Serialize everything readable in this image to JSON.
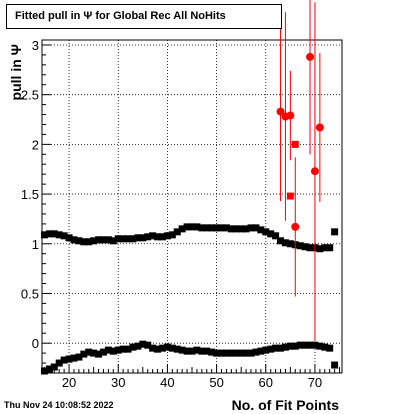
{
  "chart_data": {
    "type": "scatter",
    "title": "Fitted pull in Ψ for Global Rec All NoHits",
    "xlabel": "No. of Fit Points",
    "ylabel": "pull in Ψ",
    "xlim": [
      14.5,
      75.5
    ],
    "ylim": [
      -0.3,
      3.05
    ],
    "grid": true,
    "x_ticks": [
      20,
      30,
      40,
      50,
      60,
      70
    ],
    "y_ticks": [
      0,
      0.5,
      1,
      1.5,
      2,
      2.5,
      3
    ],
    "x_tick_labels": [
      "20",
      "30",
      "40",
      "50",
      "60",
      "70"
    ],
    "y_tick_labels": [
      "0",
      "0.5",
      "1",
      "1.5",
      "2",
      "2.5",
      "3"
    ],
    "timestamp": "Thu Nov 24 10:08:52 2022",
    "series": [
      {
        "color": "#000000",
        "marker": "square",
        "x": [
          15,
          16,
          17,
          18,
          19,
          20,
          21,
          22,
          23,
          24,
          25,
          26,
          27,
          28,
          29,
          30,
          31,
          32,
          33,
          34,
          35,
          36,
          37,
          38,
          39,
          40,
          41,
          42,
          43,
          44,
          45,
          46,
          47,
          48,
          49,
          50,
          51,
          52,
          53,
          54,
          55,
          56,
          57,
          58,
          59,
          60,
          61,
          62,
          63,
          64,
          65,
          66,
          67,
          68,
          69,
          70,
          71,
          72,
          73,
          74
        ],
        "y": [
          1.09,
          1.1,
          1.1,
          1.09,
          1.08,
          1.06,
          1.04,
          1.03,
          1.02,
          1.02,
          1.03,
          1.04,
          1.04,
          1.04,
          1.03,
          1.05,
          1.05,
          1.05,
          1.05,
          1.06,
          1.06,
          1.07,
          1.08,
          1.07,
          1.07,
          1.08,
          1.09,
          1.12,
          1.15,
          1.17,
          1.17,
          1.17,
          1.16,
          1.16,
          1.16,
          1.16,
          1.16,
          1.16,
          1.15,
          1.15,
          1.15,
          1.15,
          1.16,
          1.16,
          1.14,
          1.12,
          1.1,
          1.08,
          1.03,
          1.01,
          1.0,
          0.99,
          0.98,
          0.97,
          0.96,
          0.96,
          0.95,
          0.96,
          0.96,
          1.12
        ]
      },
      {
        "color": "#000000",
        "marker": "square",
        "x": [
          15,
          16,
          17,
          18,
          19,
          20,
          21,
          22,
          23,
          24,
          25,
          26,
          27,
          28,
          29,
          30,
          31,
          32,
          33,
          34,
          35,
          36,
          37,
          38,
          39,
          40,
          41,
          42,
          43,
          44,
          45,
          46,
          47,
          48,
          49,
          50,
          51,
          52,
          53,
          54,
          55,
          56,
          57,
          58,
          59,
          60,
          61,
          62,
          63,
          64,
          65,
          66,
          67,
          68,
          69,
          70,
          71,
          72,
          73,
          74
        ],
        "y": [
          -0.28,
          -0.26,
          -0.24,
          -0.2,
          -0.17,
          -0.16,
          -0.15,
          -0.14,
          -0.11,
          -0.09,
          -0.1,
          -0.11,
          -0.09,
          -0.07,
          -0.08,
          -0.07,
          -0.06,
          -0.06,
          -0.04,
          -0.03,
          -0.01,
          -0.02,
          -0.05,
          -0.06,
          -0.05,
          -0.04,
          -0.05,
          -0.06,
          -0.07,
          -0.08,
          -0.08,
          -0.07,
          -0.08,
          -0.08,
          -0.09,
          -0.1,
          -0.1,
          -0.1,
          -0.1,
          -0.1,
          -0.1,
          -0.1,
          -0.1,
          -0.09,
          -0.08,
          -0.07,
          -0.06,
          -0.05,
          -0.05,
          -0.04,
          -0.03,
          -0.03,
          -0.02,
          -0.02,
          -0.02,
          -0.02,
          -0.03,
          -0.04,
          -0.05,
          -0.22
        ]
      },
      {
        "color": "#ff0000",
        "marker": "circle",
        "x": [
          63,
          64,
          65,
          66,
          69,
          70,
          71
        ],
        "y": [
          2.33,
          2.28,
          2.29,
          1.17,
          2.88,
          1.73,
          2.17
        ],
        "y_err": [
          0.9,
          1.05,
          0.45,
          0.7,
          0.98,
          1.7,
          0.75
        ]
      },
      {
        "color": "#ff0000",
        "marker": "square",
        "x": [
          65,
          66
        ],
        "y": [
          1.48,
          2.0
        ]
      }
    ]
  }
}
